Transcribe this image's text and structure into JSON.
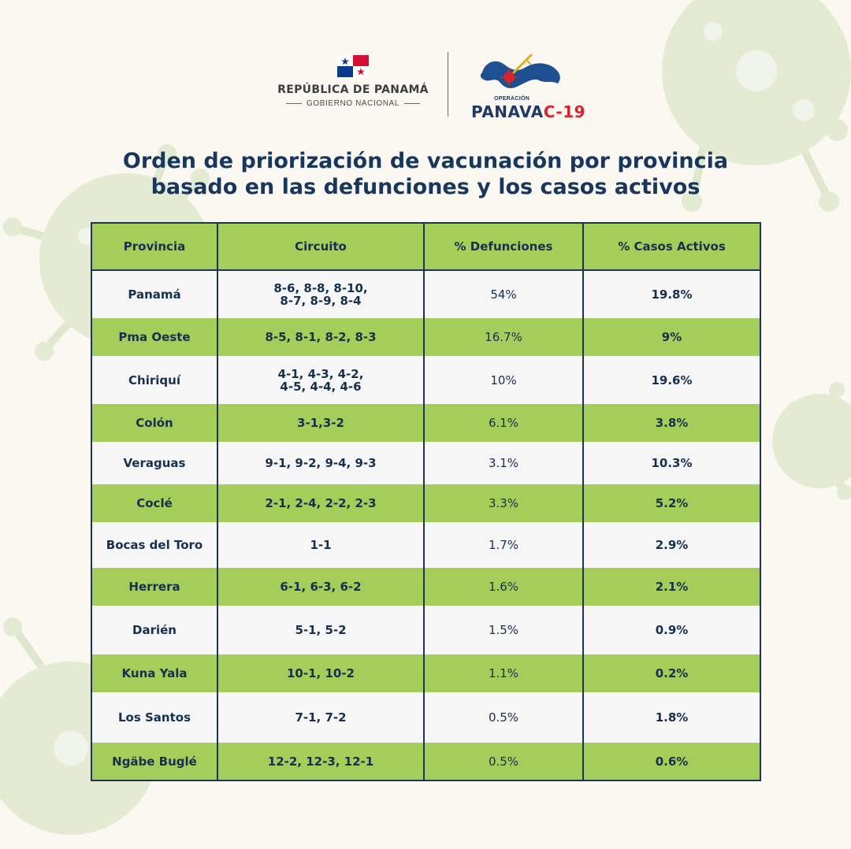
{
  "header": {
    "government_name": "REPÚBLICA DE PANAMÁ",
    "government_sub": "GOBIERNO NACIONAL",
    "operation_label": "OPERACIÓN",
    "operation_name_main": "PANAVA",
    "operation_name_accent": "C-19"
  },
  "title": {
    "line1": "Orden de priorización de vacunación por provincia",
    "line2": "basado en las defunciones y los casos activos"
  },
  "table": {
    "columns": [
      "Provincia",
      "Circuito",
      "% Defunciones",
      "% Casos Activos"
    ],
    "rows": [
      {
        "provincia": "Panamá",
        "circuito": [
          "8-6, 8-8, 8-10,",
          "8-7, 8-9, 8-4"
        ],
        "defunciones": "54%",
        "casos_activos": "19.8%"
      },
      {
        "provincia": "Pma Oeste",
        "circuito": [
          "8-5, 8-1, 8-2, 8-3"
        ],
        "defunciones": "16.7%",
        "casos_activos": "9%"
      },
      {
        "provincia": "Chiriquí",
        "circuito": [
          "4-1, 4-3, 4-2,",
          "4-5, 4-4, 4-6"
        ],
        "defunciones": "10%",
        "casos_activos": "19.6%"
      },
      {
        "provincia": "Colón",
        "circuito": [
          "3-1,3-2"
        ],
        "defunciones": "6.1%",
        "casos_activos": "3.8%"
      },
      {
        "provincia": "Veraguas",
        "circuito": [
          "9-1, 9-2, 9-4, 9-3"
        ],
        "defunciones": "3.1%",
        "casos_activos": "10.3%"
      },
      {
        "provincia": "Coclé",
        "circuito": [
          "2-1, 2-4, 2-2, 2-3"
        ],
        "defunciones": "3.3%",
        "casos_activos": "5.2%"
      },
      {
        "provincia": "Bocas del Toro",
        "circuito": [
          "1-1"
        ],
        "defunciones": "1.7%",
        "casos_activos": "2.9%"
      },
      {
        "provincia": "Herrera",
        "circuito": [
          "6-1, 6-3, 6-2"
        ],
        "defunciones": "1.6%",
        "casos_activos": "2.1%"
      },
      {
        "provincia": "Darién",
        "circuito": [
          "5-1, 5-2"
        ],
        "defunciones": "1.5%",
        "casos_activos": "0.9%"
      },
      {
        "provincia": "Kuna Yala",
        "circuito": [
          "10-1, 10-2"
        ],
        "defunciones": "1.1%",
        "casos_activos": "0.2%"
      },
      {
        "provincia": "Los Santos",
        "circuito": [
          "7-1, 7-2"
        ],
        "defunciones": "0.5%",
        "casos_activos": "1.8%"
      },
      {
        "provincia": "Ngäbe Buglé",
        "circuito": [
          "12-2, 12-3, 12-1"
        ],
        "defunciones": "0.5%",
        "casos_activos": "0.6%"
      }
    ]
  },
  "colors": {
    "navy": "#17375e",
    "green": "#a5cd5a",
    "row_light": "#f6f6f6",
    "accent_red": "#d6232c",
    "background": "#fbf8f1"
  }
}
